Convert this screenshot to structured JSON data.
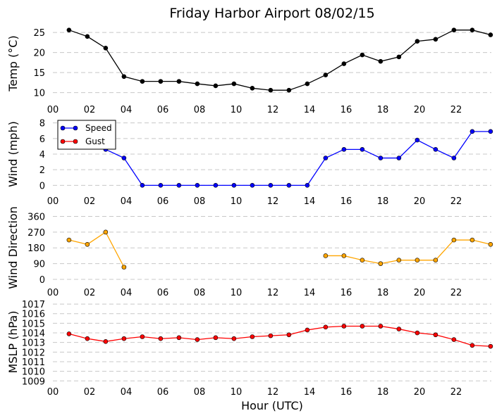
{
  "chart_data": {
    "title": "Friday Harbor Airport 08/02/15",
    "xlabel": "Hour (UTC)",
    "xticks": [
      "00",
      "02",
      "04",
      "06",
      "08",
      "10",
      "12",
      "14",
      "16",
      "18",
      "20",
      "22"
    ],
    "grid": "horizontal dashed",
    "panels": [
      {
        "type": "line",
        "ylabel": "Temp (°C)",
        "ylim": [
          8,
          26.6
        ],
        "yticks": [
          10,
          15,
          20,
          25
        ],
        "series": [
          {
            "color": "#000000",
            "x": [
              0.88,
              1.88,
              2.88,
              3.88,
              4.88,
              5.88,
              6.88,
              7.88,
              8.88,
              9.88,
              10.88,
              11.88,
              12.88,
              13.88,
              14.88,
              15.88,
              16.88,
              17.88,
              18.88,
              19.88,
              20.88,
              21.88,
              22.88,
              23.88
            ],
            "values": [
              25.6,
              24.0,
              21.1,
              14.0,
              12.8,
              12.8,
              12.8,
              12.2,
              11.7,
              12.2,
              11.1,
              10.6,
              10.6,
              12.2,
              14.4,
              17.2,
              19.4,
              17.8,
              18.9,
              22.8,
              23.3,
              25.6,
              25.6,
              24.4
            ]
          }
        ]
      },
      {
        "type": "line",
        "ylabel": "Wind (mph)",
        "ylim": [
          -0.6,
          8.6
        ],
        "yticks": [
          0,
          2,
          4,
          6,
          8
        ],
        "legend": "upper-left",
        "series": [
          {
            "name": "Speed",
            "color": "#0000ff",
            "x": [
              0.88,
              1.88,
              2.88,
              3.88,
              4.88,
              5.88,
              6.88,
              7.88,
              8.88,
              9.88,
              10.88,
              11.88,
              12.88,
              13.88,
              14.88,
              15.88,
              16.88,
              17.88,
              18.88,
              19.88,
              20.88,
              21.88,
              22.88,
              23.88
            ],
            "values": [
              5.8,
              5.8,
              4.6,
              3.5,
              0,
              0,
              0,
              0,
              0,
              0,
              0,
              0,
              0,
              0,
              3.5,
              4.6,
              4.6,
              3.5,
              3.5,
              5.8,
              4.6,
              3.5,
              6.9,
              6.9
            ]
          },
          {
            "name": "Gust",
            "color": "#ff0000",
            "x": [],
            "values": []
          }
        ]
      },
      {
        "type": "line",
        "ylabel": "Wind Direction",
        "ylim": [
          -28,
          390
        ],
        "yticks": [
          0,
          90,
          180,
          270,
          360
        ],
        "series": [
          {
            "color": "#ffa500",
            "x": [
              0.88,
              1.88,
              2.88,
              3.88,
              4.88,
              5.88,
              6.88,
              7.88,
              8.88,
              9.88,
              10.88,
              11.88,
              12.88,
              13.88,
              14.88,
              15.88,
              16.88,
              17.88,
              18.88,
              19.88,
              20.88,
              21.88,
              22.88,
              23.88
            ],
            "values": [
              225,
              200,
              270,
              70,
              null,
              null,
              null,
              null,
              null,
              null,
              null,
              null,
              null,
              null,
              135,
              135,
              110,
              90,
              110,
              110,
              110,
              225,
              225,
              200
            ]
          }
        ]
      },
      {
        "type": "line",
        "ylabel": "MSLP (hPa)",
        "ylim": [
          1008.8,
          1017.3
        ],
        "yticks": [
          1009,
          1010,
          1011,
          1012,
          1013,
          1014,
          1015,
          1016,
          1017
        ],
        "series": [
          {
            "color": "#ff0000",
            "x": [
              0.88,
              1.88,
              2.88,
              3.88,
              4.88,
              5.88,
              6.88,
              7.88,
              8.88,
              9.88,
              10.88,
              11.88,
              12.88,
              13.88,
              14.88,
              15.88,
              16.88,
              17.88,
              18.88,
              19.88,
              20.88,
              21.88,
              22.88,
              23.88
            ],
            "values": [
              1013.9,
              1013.4,
              1013.1,
              1013.4,
              1013.6,
              1013.4,
              1013.5,
              1013.3,
              1013.5,
              1013.4,
              1013.6,
              1013.7,
              1013.8,
              1014.3,
              1014.6,
              1014.7,
              1014.7,
              1014.7,
              1014.4,
              1014.0,
              1013.8,
              1013.3,
              1012.7,
              1012.6
            ]
          }
        ]
      }
    ]
  }
}
